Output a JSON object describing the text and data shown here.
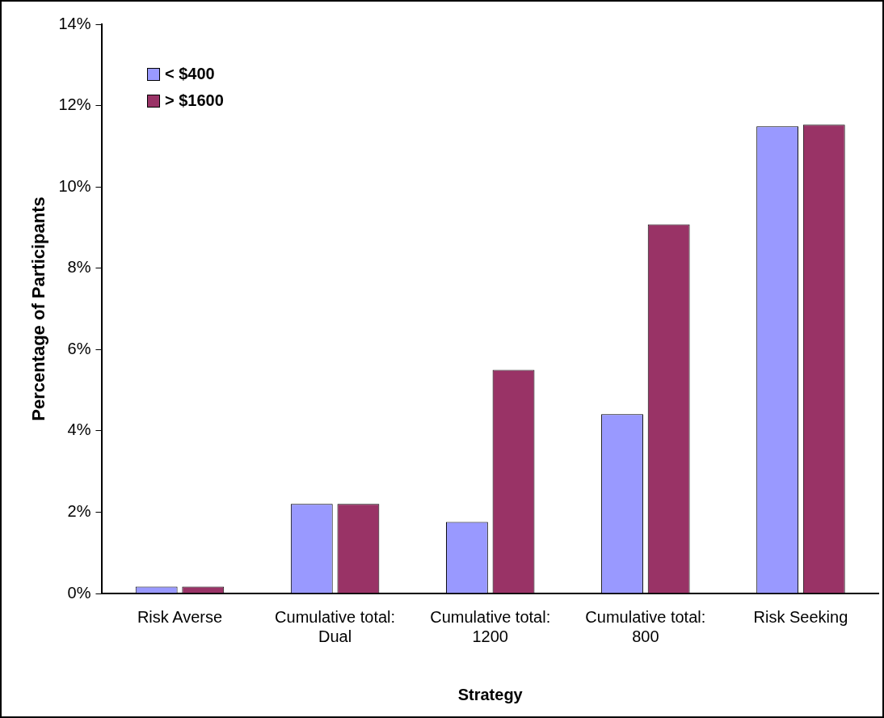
{
  "chart_data": {
    "type": "bar",
    "xlabel": "Strategy",
    "ylabel": "Percentage of Participants",
    "categories": [
      "Risk Averse",
      "Cumulative total:\nDual",
      "Cumulative total:\n1200",
      "Cumulative total:\n800",
      "Risk Seeking"
    ],
    "series": [
      {
        "name": "< $400",
        "color": "#9999ff",
        "values": [
          0.17,
          2.2,
          1.76,
          4.41,
          11.49
        ]
      },
      {
        "name": "> $1600",
        "color": "#993366",
        "values": [
          0.17,
          2.2,
          5.5,
          9.08,
          11.53
        ]
      }
    ],
    "ylim": [
      0,
      14
    ],
    "yticks": [
      {
        "value": 0,
        "label": "0%"
      },
      {
        "value": 2,
        "label": "2%"
      },
      {
        "value": 4,
        "label": "4%"
      },
      {
        "value": 6,
        "label": "6%"
      },
      {
        "value": 8,
        "label": "8%"
      },
      {
        "value": 10,
        "label": "10%"
      },
      {
        "value": 12,
        "label": "12%"
      },
      {
        "value": 14,
        "label": "14%"
      }
    ],
    "grid": false,
    "legend": "top left"
  }
}
